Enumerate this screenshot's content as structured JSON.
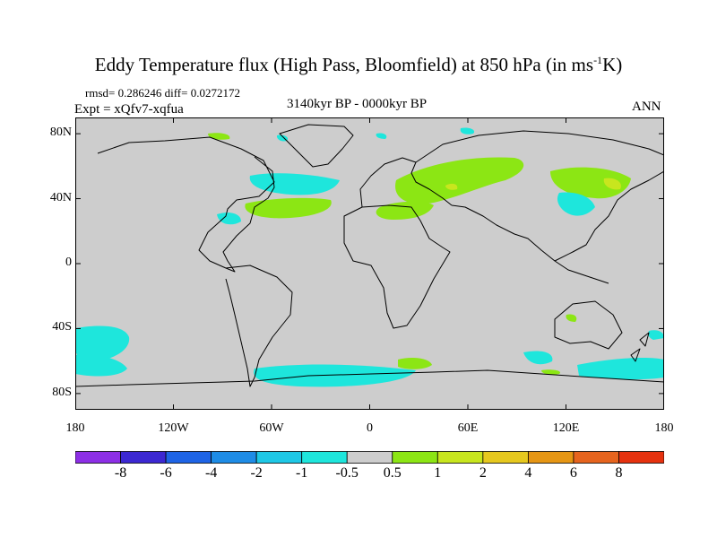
{
  "title": {
    "main": "Eddy Temperature flux (High Pass, Bloomfield) at 850 hPa (in ms",
    "sup": "-1",
    "tail": "K)"
  },
  "stats": "rmsd= 0.286246 diff= 0.0272172",
  "experiment": "Expt = xQfv7-xqfua",
  "period": "3140kyr BP - 0000kyr BP",
  "season": "ANN",
  "lat_labels": [
    "80N",
    "40N",
    "0",
    "40S",
    "80S"
  ],
  "lat_values": [
    80,
    40,
    0,
    -40,
    -80
  ],
  "lon_labels": [
    "180",
    "120W",
    "60W",
    "0",
    "60E",
    "120E",
    "180"
  ],
  "lon_values": [
    -180,
    -120,
    -60,
    0,
    60,
    120,
    180
  ],
  "colorbar": {
    "labels": [
      "-8",
      "-6",
      "-4",
      "-2",
      "-1",
      "-0.5",
      "0.5",
      "1",
      "2",
      "4",
      "6",
      "8"
    ],
    "colors": [
      "#8d2fe6",
      "#3c28d2",
      "#1e64e6",
      "#1e8ce6",
      "#1ec8e6",
      "#1ee6dc",
      "#cdcdcd",
      "#8ce614",
      "#c8e61e",
      "#e6c81e",
      "#e69614",
      "#e6641e",
      "#e6320f"
    ]
  },
  "colors": {
    "land_ocean": "#cdcdcd",
    "coast": "#000000",
    "positive": "#8ce614",
    "positive_high": "#c8e61e",
    "negative": "#1ee6dc"
  }
}
